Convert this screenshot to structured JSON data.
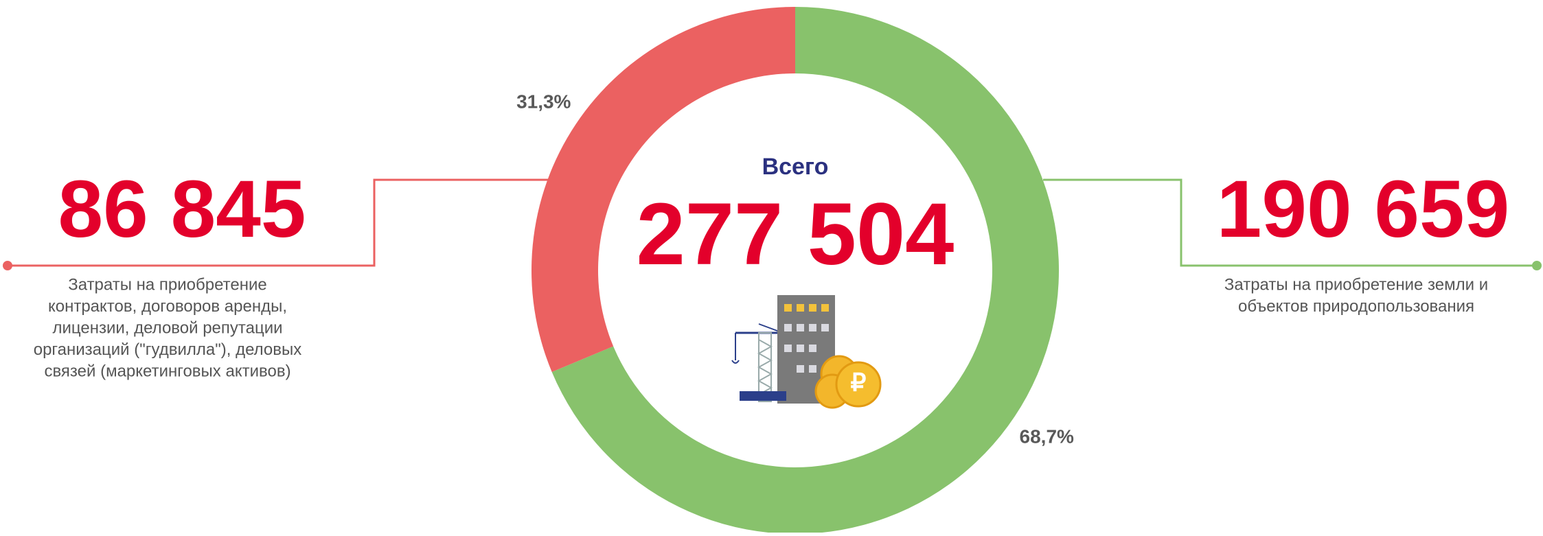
{
  "chart_data": {
    "type": "donut",
    "total_title": "Всего",
    "total": {
      "value": 277504,
      "label": "277 504"
    },
    "series": [
      {
        "name": [
          "Затраты на приобретение",
          "контрактов, договоров аренды,",
          "лицензии, деловой репутации",
          "организаций (\"гудвилла\"), деловых",
          "связей (маркетинговых активов)"
        ],
        "color": "#eb6161",
        "value": 86845,
        "value_label": "86 845",
        "share": 31.3,
        "share_label": "31,3%"
      },
      {
        "name": [
          "Затраты на приобретение земли и",
          "объектов природопользования"
        ],
        "color": "#88c26c",
        "value": 190659,
        "value_label": "190 659",
        "share": 68.7,
        "share_label": "68,7%"
      }
    ]
  }
}
